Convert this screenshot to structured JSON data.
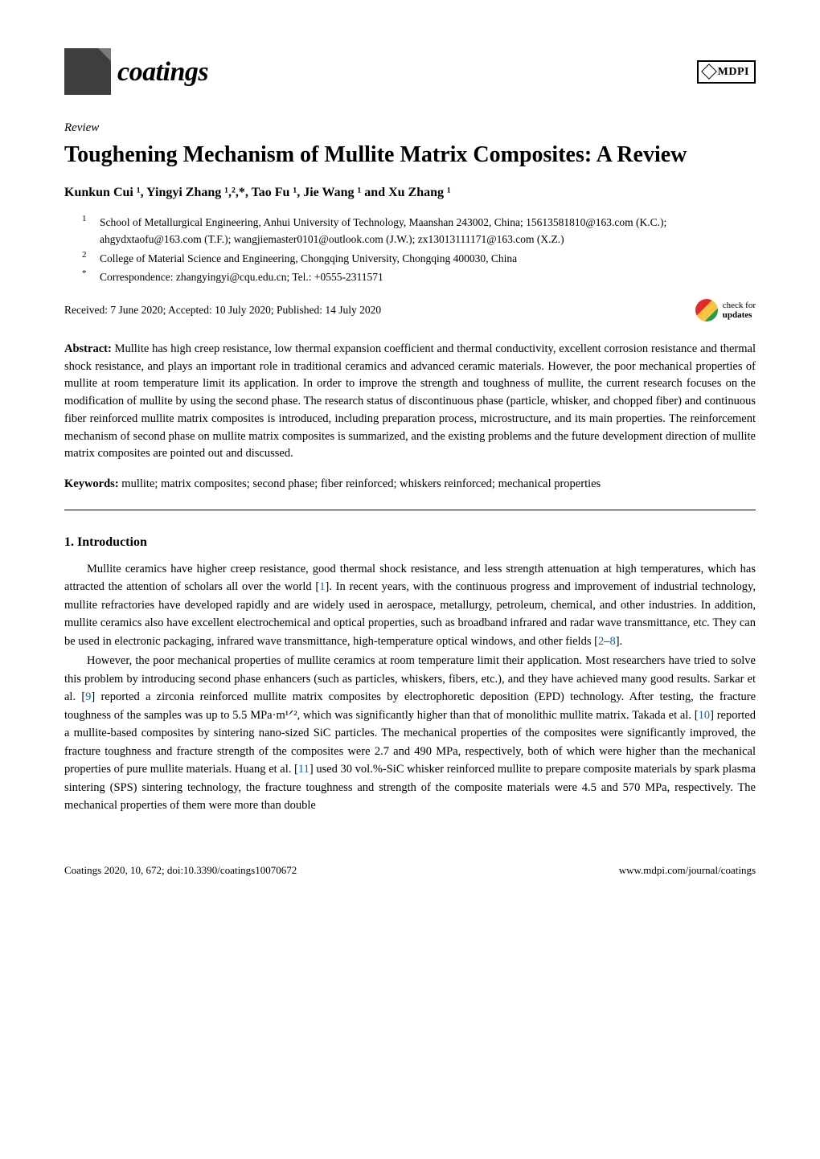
{
  "journal": {
    "name": "coatings",
    "publisher": "MDPI"
  },
  "article": {
    "type": "Review",
    "title": "Toughening Mechanism of Mullite Matrix Composites: A Review",
    "authors_html": "Kunkun Cui ¹, Yingyi Zhang ¹,²,*, Tao Fu ¹, Jie Wang ¹ and Xu Zhang ¹",
    "affiliations": [
      {
        "num": "1",
        "text": "School of Metallurgical Engineering, Anhui University of Technology, Maanshan 243002, China; 15613581810@163.com (K.C.); ahgydxtaofu@163.com (T.F.); wangjiemaster0101@outlook.com (J.W.); zx13013111171@163.com (X.Z.)"
      },
      {
        "num": "2",
        "text": "College of Material Science and Engineering, Chongqing University, Chongqing 400030, China"
      },
      {
        "num": "*",
        "text": "Correspondence: zhangyingyi@cqu.edu.cn; Tel.: +0555-2311571"
      }
    ],
    "dates": "Received: 7 June 2020; Accepted: 10 July 2020; Published: 14 July 2020",
    "check_updates_label": "check for",
    "check_updates_label2": "updates",
    "abstract_label": "Abstract:",
    "abstract": "Mullite has high creep resistance, low thermal expansion coefficient and thermal conductivity, excellent corrosion resistance and thermal shock resistance, and plays an important role in traditional ceramics and advanced ceramic materials. However, the poor mechanical properties of mullite at room temperature limit its application. In order to improve the strength and toughness of mullite, the current research focuses on the modification of mullite by using the second phase. The research status of discontinuous phase (particle, whisker, and chopped fiber) and continuous fiber reinforced mullite matrix composites is introduced, including preparation process, microstructure, and its main properties. The reinforcement mechanism of second phase on mullite matrix composites is summarized, and the existing problems and the future development direction of mullite matrix composites are pointed out and discussed.",
    "keywords_label": "Keywords:",
    "keywords": "mullite; matrix composites; second phase; fiber reinforced; whiskers reinforced; mechanical properties"
  },
  "section1": {
    "heading": "1. Introduction",
    "p1_a": "Mullite ceramics have higher creep resistance, good thermal shock resistance, and less strength attenuation at high temperatures, which has attracted the attention of scholars all over the world [",
    "p1_ref1": "1",
    "p1_b": "]. In recent years, with the continuous progress and improvement of industrial technology, mullite refractories have developed rapidly and are widely used in aerospace, metallurgy, petroleum, chemical, and other industries. In addition, mullite ceramics also have excellent electrochemical and optical properties, such as broadband infrared and radar wave transmittance, etc. They can be used in electronic packaging, infrared wave transmittance, high-temperature optical windows, and other fields [",
    "p1_ref2": "2",
    "p1_dash": "–",
    "p1_ref3": "8",
    "p1_c": "].",
    "p2_a": "However, the poor mechanical properties of mullite ceramics at room temperature limit their application. Most researchers have tried to solve this problem by introducing second phase enhancers (such as particles, whiskers, fibers, etc.), and they have achieved many good results. Sarkar et al. [",
    "p2_ref1": "9",
    "p2_b": "] reported a zirconia reinforced mullite matrix composites by electrophoretic deposition (EPD) technology. After testing, the fracture toughness of the samples was up to 5.5 MPa·m¹ᐟ², which was significantly higher than that of monolithic mullite matrix. Takada et al. [",
    "p2_ref2": "10",
    "p2_c": "] reported a mullite-based composites by sintering nano-sized SiC particles. The mechanical properties of the composites were significantly improved, the fracture toughness and fracture strength of the composites were 2.7 and 490 MPa, respectively, both of which were higher than the mechanical properties of pure mullite materials. Huang et al. [",
    "p2_ref3": "11",
    "p2_d": "] used 30 vol.%-SiC whisker reinforced mullite to prepare composite materials by spark plasma sintering (SPS) sintering technology, the fracture toughness and strength of the composite materials were 4.5 and 570 MPa, respectively. The mechanical properties of them were more than double"
  },
  "footer": {
    "left": "Coatings 2020, 10, 672; doi:10.3390/coatings10070672",
    "right": "www.mdpi.com/journal/coatings"
  },
  "colors": {
    "link": "#0066cc",
    "text": "#000000",
    "bg": "#ffffff"
  }
}
